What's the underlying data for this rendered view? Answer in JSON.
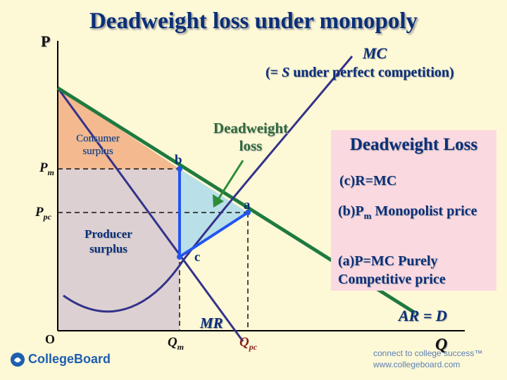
{
  "title": "Deadweight loss under monopoly",
  "axes": {
    "y_label": "P",
    "x_label": "Q",
    "origin": "O"
  },
  "curves": {
    "mc_label": "MC",
    "mc_sub_prefix": "(= ",
    "mc_sub_s": "S",
    "mc_sub_rest": " under perfect competition)",
    "demand_label": "AR = D",
    "mr_label": "MR"
  },
  "areas": {
    "consumer_surplus": "Consumer surplus",
    "producer_surplus": "Producer surplus",
    "deadweight_loss": "Deadweight loss"
  },
  "points": {
    "a": "a",
    "b": "b",
    "c": "c"
  },
  "price_labels": {
    "pm_main": "P",
    "pm_sub": "m",
    "ppc_main": "P",
    "ppc_sub": "pc"
  },
  "quantity_labels": {
    "qm_main": "Q",
    "qm_sub": "m",
    "qpc_main": "Q",
    "qpc_sub": "pc"
  },
  "legend_box": {
    "heading": "Deadweight Loss",
    "line_c": "(c)R=MC",
    "line_b_pre": "(b)P",
    "line_b_sub": "m",
    "line_b_post": "  Monopolist price",
    "line_a": "(a)P=MC   Purely Competitive price"
  },
  "footer": {
    "left_brand": "CollegeBoard",
    "right_line1": "connect to college success™",
    "right_line2": "www.collegeboard.com"
  },
  "colors": {
    "background": "#fdf8d6",
    "consumer_surplus": "#f4b98f",
    "producer_surplus": "#ddd0d2",
    "deadweight_loss": "#b9dfe8",
    "demand": "#1f7a3f",
    "mc": "#33338a",
    "mr": "#33338a",
    "triangle_edge": "#2255ee",
    "text": "#0a2f78",
    "box": "#fbd9e1"
  }
}
